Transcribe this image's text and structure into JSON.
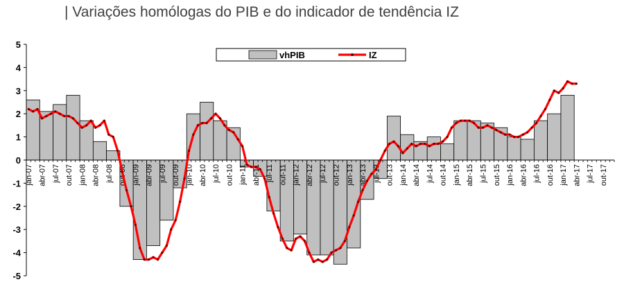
{
  "chart_data": {
    "type": "bar",
    "title": "| Variações homólogas do PIB e do indicador de tendência IZ",
    "legend_position": "top-center",
    "grid": false,
    "ylim": [
      -5,
      5
    ],
    "yticks": [
      -5,
      -4,
      -3,
      -2,
      -1,
      0,
      1,
      2,
      3,
      4,
      5
    ],
    "x_tick_labels": [
      "jan-07",
      "abr-07",
      "jul-07",
      "out-07",
      "jan-08",
      "abr-08",
      "jul-08",
      "out-08",
      "jan-09",
      "abr-09",
      "jul-09",
      "out-09",
      "jan-10",
      "abr-10",
      "jul-10",
      "out-10",
      "jan-11",
      "abr-11",
      "jul-11",
      "out-11",
      "jan-12",
      "abr-12",
      "jul-12",
      "out-12",
      "jan-13",
      "abr-13",
      "jul-13",
      "out-13",
      "jan-14",
      "abr-14",
      "jul-14",
      "out-14",
      "jan-15",
      "abr-15",
      "jul-15",
      "out-15",
      "jan-16",
      "abr-16",
      "jul-16",
      "out-16",
      "jan-17",
      "abr-17",
      "jul-17",
      "out-17"
    ],
    "series": [
      {
        "name": "vhPIB",
        "kind": "bar",
        "color": "#c0c0c0",
        "quarters": [
          "2007Q1",
          "2007Q2",
          "2007Q3",
          "2007Q4",
          "2008Q1",
          "2008Q2",
          "2008Q3",
          "2008Q4",
          "2009Q1",
          "2009Q2",
          "2009Q3",
          "2009Q4",
          "2010Q1",
          "2010Q2",
          "2010Q3",
          "2010Q4",
          "2011Q1",
          "2011Q2",
          "2011Q3",
          "2011Q4",
          "2012Q1",
          "2012Q2",
          "2012Q3",
          "2012Q4",
          "2013Q1",
          "2013Q2",
          "2013Q3",
          "2013Q4",
          "2014Q1",
          "2014Q2",
          "2014Q3",
          "2014Q4",
          "2015Q1",
          "2015Q2",
          "2015Q3",
          "2015Q4",
          "2016Q1",
          "2016Q2",
          "2016Q3",
          "2016Q4",
          "2017Q1"
        ],
        "values": [
          2.6,
          2.1,
          2.4,
          2.8,
          1.7,
          0.8,
          0.4,
          -2.0,
          -4.3,
          -3.7,
          -2.6,
          -1.2,
          2.0,
          2.5,
          1.7,
          1.4,
          -0.3,
          -0.7,
          -2.2,
          -3.5,
          -3.2,
          -4.1,
          -4.1,
          -4.5,
          -3.8,
          -1.7,
          -0.8,
          1.9,
          1.1,
          0.8,
          1.0,
          0.7,
          1.7,
          1.7,
          1.6,
          1.4,
          1.0,
          0.9,
          1.7,
          2.0,
          2.8
        ]
      },
      {
        "name": "IZ",
        "kind": "line",
        "color": "#ff0000",
        "months_start": "jan-07",
        "values": [
          2.2,
          2.1,
          2.2,
          1.8,
          1.9,
          2.0,
          2.1,
          2.0,
          1.9,
          1.9,
          1.8,
          1.6,
          1.4,
          1.5,
          1.7,
          1.4,
          1.5,
          1.7,
          1.1,
          1.0,
          0.4,
          -0.5,
          -1.3,
          -2.0,
          -2.8,
          -3.8,
          -4.3,
          -4.3,
          -4.2,
          -4.3,
          -4.0,
          -3.7,
          -3.0,
          -2.6,
          -1.8,
          -0.8,
          0.4,
          1.1,
          1.5,
          1.6,
          1.6,
          1.8,
          2.0,
          1.8,
          1.5,
          1.3,
          1.2,
          0.9,
          0.6,
          -0.2,
          -0.3,
          -0.3,
          -0.4,
          -0.8,
          -1.6,
          -2.3,
          -2.9,
          -3.4,
          -3.8,
          -3.9,
          -3.4,
          -3.3,
          -3.5,
          -4.0,
          -4.4,
          -4.3,
          -4.4,
          -4.3,
          -4.0,
          -3.9,
          -3.8,
          -3.5,
          -2.9,
          -2.4,
          -1.8,
          -1.3,
          -0.9,
          -0.6,
          -0.4,
          0.0,
          0.4,
          0.7,
          0.8,
          0.6,
          0.3,
          0.5,
          0.7,
          0.6,
          0.7,
          0.7,
          0.6,
          0.7,
          0.7,
          0.8,
          1.0,
          1.4,
          1.6,
          1.7,
          1.7,
          1.7,
          1.6,
          1.4,
          1.4,
          1.5,
          1.4,
          1.3,
          1.2,
          1.1,
          1.1,
          1.0,
          1.0,
          1.1,
          1.2,
          1.4,
          1.6,
          1.9,
          2.2,
          2.6,
          3.0,
          2.9,
          3.1,
          3.4,
          3.3,
          3.3
        ]
      }
    ]
  }
}
